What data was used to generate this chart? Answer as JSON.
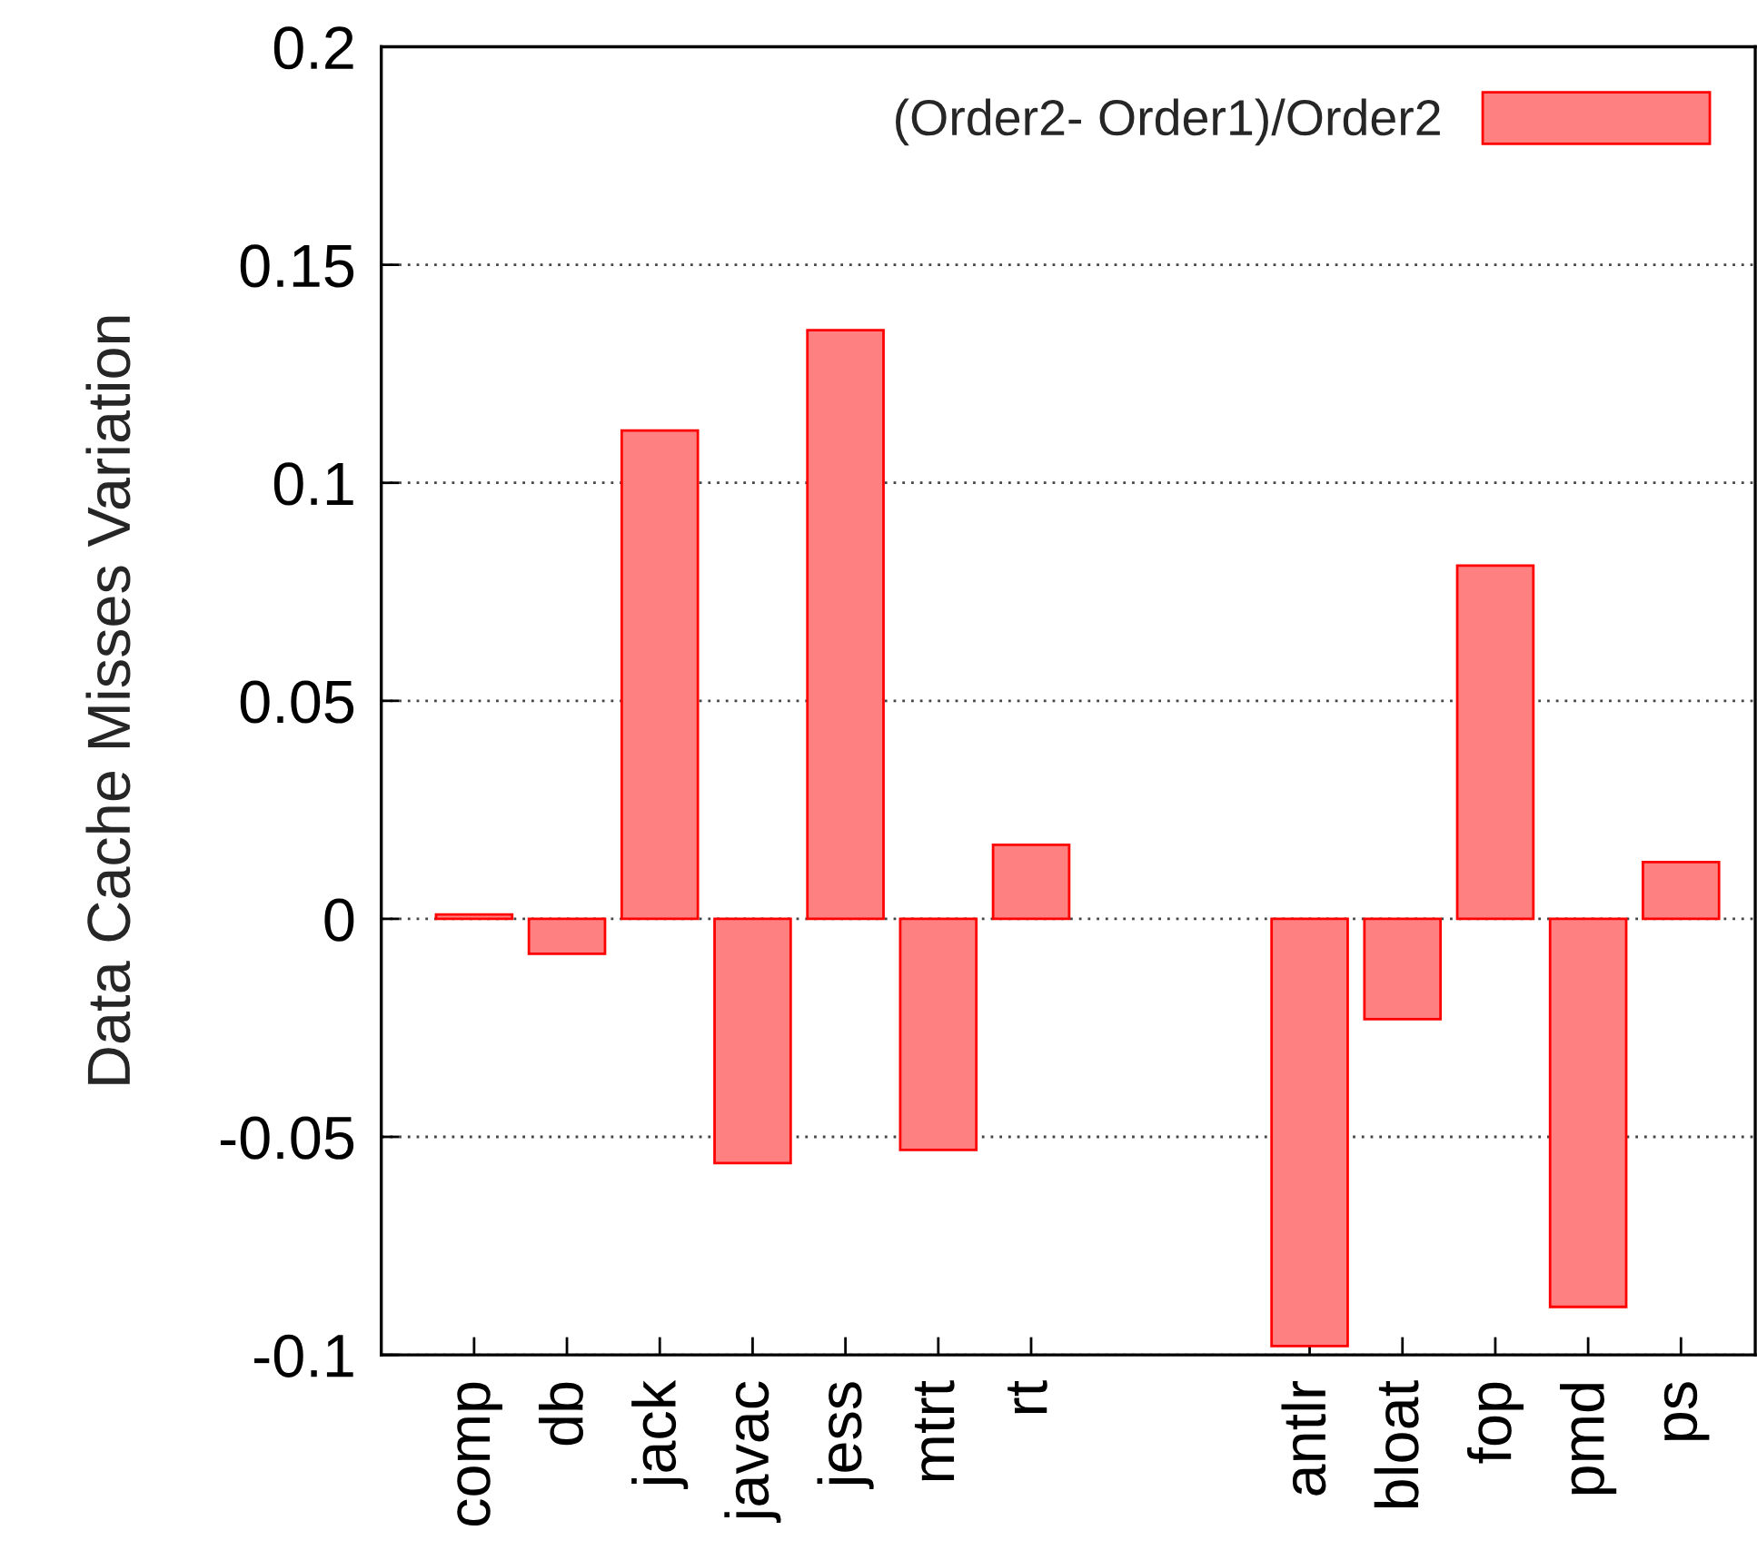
{
  "chart_data": {
    "type": "bar",
    "ylabel": "Data Cache Misses Variation",
    "categories": [
      "comp",
      "db",
      "jack",
      "javac",
      "jess",
      "mtrt",
      "rt",
      null,
      null,
      "antlr",
      "bloat",
      "fop",
      "pmd",
      "ps"
    ],
    "series": [
      {
        "name": "(Order2- Order1)/Order2",
        "color": "#ff8080",
        "values": [
          0.001,
          -0.008,
          0.112,
          -0.056,
          0.135,
          -0.053,
          0.017,
          null,
          null,
          -0.098,
          -0.023,
          0.081,
          -0.089,
          0.013
        ]
      }
    ],
    "ylim": [
      -0.1,
      0.2
    ],
    "yticks": [
      -0.1,
      -0.05,
      0,
      0.05,
      0.1,
      0.15,
      0.2
    ],
    "grid": "y",
    "legend": "top right"
  }
}
